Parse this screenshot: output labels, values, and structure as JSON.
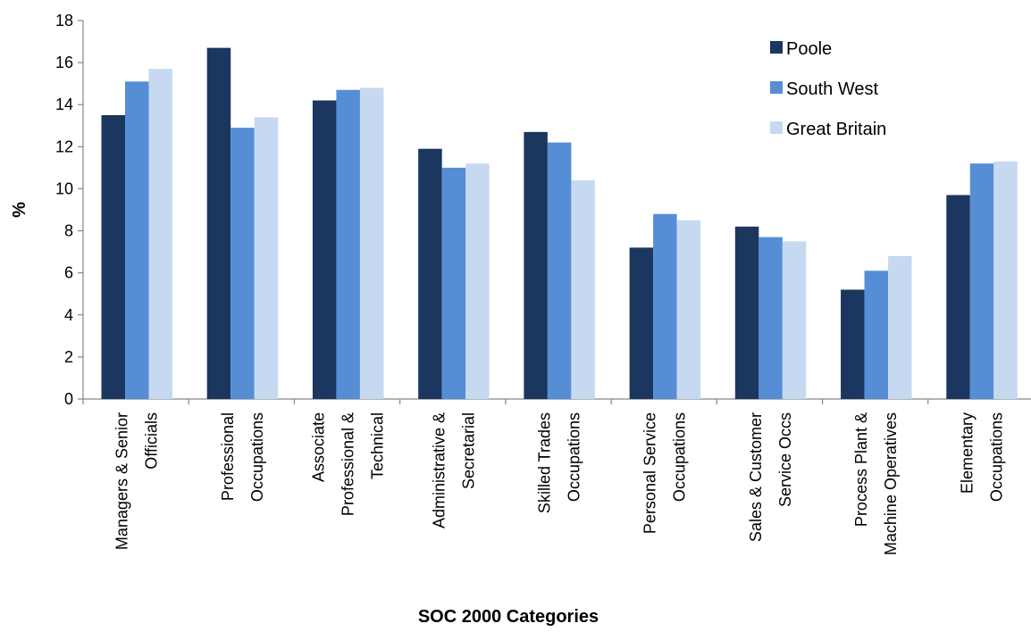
{
  "chart_data": {
    "type": "bar",
    "title": "",
    "xlabel": "SOC 2000 Categories",
    "ylabel": "%",
    "ylim": [
      0,
      18
    ],
    "yticks": [
      0,
      2,
      4,
      6,
      8,
      10,
      12,
      14,
      16,
      18
    ],
    "grid": false,
    "legend_position": "top-right",
    "categories": [
      [
        "Managers & Senior",
        "Officials"
      ],
      [
        "Professional",
        "Occupations"
      ],
      [
        "Associate",
        "Professional &",
        "Technical"
      ],
      [
        "Administrative &",
        "Secretarial"
      ],
      [
        "Skilled Trades",
        "Occupations"
      ],
      [
        "Personal Service",
        "Occupations"
      ],
      [
        "Sales & Customer",
        "Service Occs"
      ],
      [
        "Process Plant &",
        "Machine Operatives"
      ],
      [
        "Elementary",
        "Occupations"
      ]
    ],
    "series": [
      {
        "name": "Poole",
        "color": "#1b365f",
        "values": [
          13.5,
          16.7,
          14.2,
          11.9,
          12.7,
          7.2,
          8.2,
          5.2,
          9.7
        ]
      },
      {
        "name": "South West",
        "color": "#558ed5",
        "values": [
          15.1,
          12.9,
          14.7,
          11.0,
          12.2,
          8.8,
          7.7,
          6.1,
          11.2
        ]
      },
      {
        "name": "Great Britain",
        "color": "#c6d9f1",
        "values": [
          15.7,
          13.4,
          14.8,
          11.2,
          10.4,
          8.5,
          7.5,
          6.8,
          11.3
        ]
      }
    ]
  }
}
